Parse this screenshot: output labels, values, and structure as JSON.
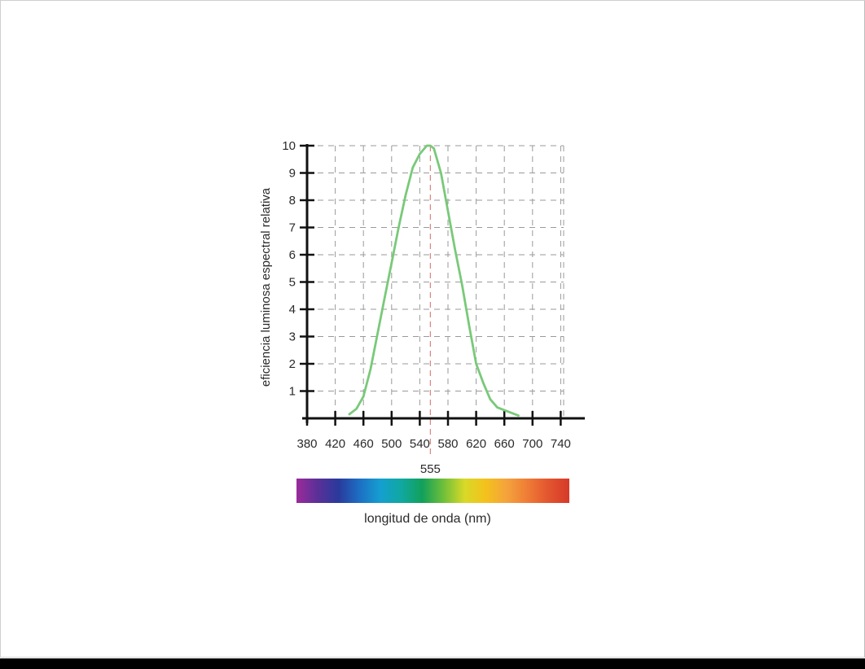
{
  "chart_data": {
    "type": "line",
    "title": "",
    "xlabel": "longitud de onda (nm)",
    "ylabel": "eficiencia luminosa espectral relativa",
    "xlim": [
      380,
      760
    ],
    "ylim": [
      0,
      10
    ],
    "x_ticks": [
      380,
      420,
      460,
      500,
      540,
      580,
      620,
      660,
      700,
      740
    ],
    "y_ticks": [
      1,
      2,
      3,
      4,
      5,
      6,
      7,
      8,
      9,
      10
    ],
    "highlight_x": 555,
    "highlight_label": "555",
    "grid": true,
    "series": [
      {
        "color": "#79c979",
        "points": [
          [
            440,
            0.15
          ],
          [
            450,
            0.35
          ],
          [
            460,
            0.8
          ],
          [
            470,
            1.8
          ],
          [
            480,
            3.1
          ],
          [
            490,
            4.4
          ],
          [
            500,
            5.7
          ],
          [
            510,
            7.0
          ],
          [
            520,
            8.2
          ],
          [
            530,
            9.2
          ],
          [
            540,
            9.7
          ],
          [
            550,
            10.0
          ],
          [
            555,
            10.0
          ],
          [
            560,
            9.9
          ],
          [
            570,
            9.0
          ],
          [
            580,
            7.6
          ],
          [
            590,
            6.2
          ],
          [
            600,
            4.9
          ],
          [
            610,
            3.4
          ],
          [
            620,
            2.0
          ],
          [
            630,
            1.3
          ],
          [
            640,
            0.7
          ],
          [
            650,
            0.4
          ],
          [
            660,
            0.3
          ],
          [
            670,
            0.2
          ],
          [
            680,
            0.1
          ]
        ]
      }
    ],
    "spectrum_colors": [
      "#9b2b9b",
      "#5a3098",
      "#2a3a9c",
      "#1d6fc4",
      "#159fd0",
      "#10a8a0",
      "#12a05a",
      "#6fbf3a",
      "#d8d928",
      "#f4c21c",
      "#f4a33c",
      "#ef7c36",
      "#e2552f",
      "#d63a2a"
    ]
  }
}
